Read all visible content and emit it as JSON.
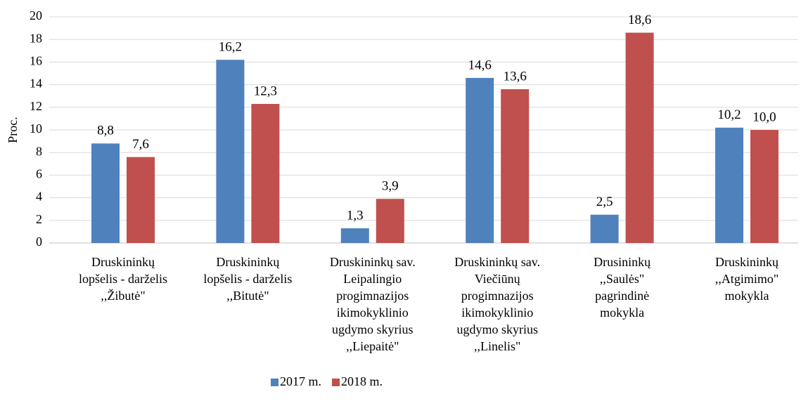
{
  "chart_data": {
    "type": "bar",
    "ylabel": "Proc.",
    "categories": [
      "Druskininkų\nlopšelis - darželis\n,,Žibutė\"",
      "Druskininkų\nlopšelis - darželis\n,,Bitutė\"",
      "Druskininkų sav.\nLeipalingio\nprogimnazijos\nikimokyklinio\nugdymo skyrius\n,,Liepaitė\"",
      "Druskininkų sav.\nViečiūnų\nprogimnazijos\nikimokyklinio\nugdymo skyrius\n,,Linelis\"",
      "Drusininkų\n,,Saulės\"\npagrindinė\nmokykla",
      "Druskininkų\n,,Atgimimo\"\nmokykla"
    ],
    "series": [
      {
        "name": "2017 m.",
        "color": "#4f81bd",
        "values": [
          8.8,
          16.2,
          1.3,
          14.6,
          2.5,
          10.2
        ],
        "value_labels": [
          "8,8",
          "16,2",
          "1,3",
          "14,6",
          "2,5",
          "10,2"
        ]
      },
      {
        "name": "2018 m.",
        "color": "#c0504d",
        "values": [
          7.6,
          12.3,
          3.9,
          13.6,
          18.6,
          10.0
        ],
        "value_labels": [
          "7,6",
          "12,3",
          "3,9",
          "13,6",
          "18,6",
          "10,0"
        ]
      }
    ],
    "ylim": [
      0,
      20
    ],
    "yticks": [
      0,
      2,
      4,
      6,
      8,
      10,
      12,
      14,
      16,
      18,
      20
    ],
    "grid": true,
    "legend": "bottom"
  }
}
